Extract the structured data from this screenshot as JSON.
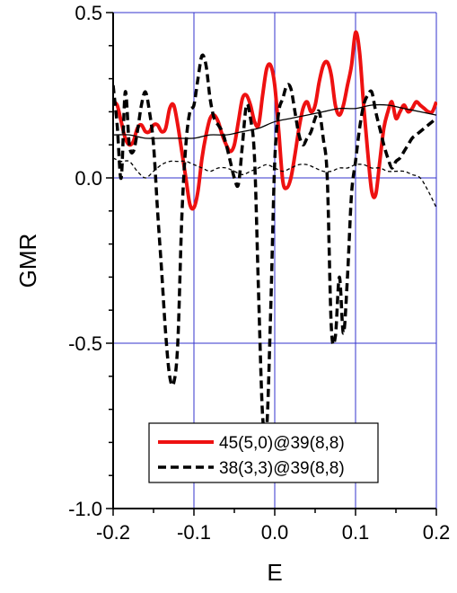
{
  "chart_data": {
    "type": "line",
    "xlabel": "E",
    "ylabel": "GMR",
    "xlim": [
      -0.2,
      0.2
    ],
    "ylim": [
      -1.0,
      0.5
    ],
    "xticks": [
      -0.2,
      -0.1,
      0.0,
      0.1,
      0.2
    ],
    "xtick_labels": [
      "-0.2",
      "-0.1",
      "0.0",
      "0.1",
      "0.2"
    ],
    "yticks": [
      -1.0,
      -0.5,
      0.0,
      0.5
    ],
    "ytick_labels": [
      "-1.0",
      "-0.5",
      "0.0",
      "0.5"
    ],
    "grid": true,
    "grid_color": "#3333cc",
    "legend_position": "bottom-center",
    "series": [
      {
        "name": "45(5,0)@39(8,8)",
        "color": "#ee1111",
        "style": "solid-thick",
        "x": [
          -0.2,
          -0.195,
          -0.19,
          -0.185,
          -0.18,
          -0.175,
          -0.17,
          -0.165,
          -0.16,
          -0.155,
          -0.15,
          -0.145,
          -0.14,
          -0.135,
          -0.13,
          -0.125,
          -0.12,
          -0.115,
          -0.11,
          -0.105,
          -0.1,
          -0.095,
          -0.09,
          -0.085,
          -0.08,
          -0.075,
          -0.07,
          -0.065,
          -0.06,
          -0.055,
          -0.05,
          -0.045,
          -0.04,
          -0.035,
          -0.03,
          -0.025,
          -0.02,
          -0.015,
          -0.01,
          -0.005,
          0.0,
          0.005,
          0.01,
          0.015,
          0.02,
          0.025,
          0.03,
          0.035,
          0.04,
          0.045,
          0.05,
          0.055,
          0.06,
          0.065,
          0.07,
          0.075,
          0.08,
          0.085,
          0.09,
          0.095,
          0.1,
          0.105,
          0.11,
          0.115,
          0.12,
          0.125,
          0.13,
          0.135,
          0.14,
          0.145,
          0.15,
          0.155,
          0.16,
          0.165,
          0.17,
          0.175,
          0.18,
          0.185,
          0.19,
          0.195,
          0.2
        ],
        "y": [
          0.23,
          0.22,
          0.17,
          0.12,
          0.1,
          0.11,
          0.15,
          0.16,
          0.14,
          0.14,
          0.16,
          0.16,
          0.14,
          0.15,
          0.21,
          0.22,
          0.16,
          0.08,
          0.0,
          -0.08,
          -0.09,
          -0.04,
          0.06,
          0.13,
          0.18,
          0.19,
          0.17,
          0.13,
          0.1,
          0.08,
          0.1,
          0.17,
          0.24,
          0.25,
          0.22,
          0.17,
          0.16,
          0.25,
          0.33,
          0.34,
          0.28,
          0.14,
          -0.01,
          -0.03,
          0.0,
          0.07,
          0.15,
          0.21,
          0.23,
          0.2,
          0.22,
          0.29,
          0.34,
          0.35,
          0.31,
          0.22,
          0.19,
          0.22,
          0.28,
          0.34,
          0.44,
          0.38,
          0.22,
          0.08,
          -0.04,
          -0.05,
          0.05,
          0.15,
          0.2,
          0.23,
          0.18,
          0.2,
          0.22,
          0.2,
          0.21,
          0.23,
          0.22,
          0.21,
          0.2,
          0.2,
          0.23
        ]
      },
      {
        "name": "38(3,3)@39(8,8)",
        "color": "#000000",
        "style": "dashed-thick",
        "x": [
          -0.2,
          -0.195,
          -0.19,
          -0.185,
          -0.18,
          -0.175,
          -0.17,
          -0.165,
          -0.16,
          -0.155,
          -0.15,
          -0.145,
          -0.14,
          -0.135,
          -0.13,
          -0.125,
          -0.12,
          -0.115,
          -0.11,
          -0.105,
          -0.1,
          -0.095,
          -0.09,
          -0.085,
          -0.08,
          -0.075,
          -0.07,
          -0.065,
          -0.06,
          -0.055,
          -0.05,
          -0.045,
          -0.04,
          -0.035,
          -0.03,
          -0.025,
          -0.02,
          -0.015,
          -0.01,
          -0.005,
          0.0,
          0.005,
          0.01,
          0.015,
          0.02,
          0.025,
          0.03,
          0.035,
          0.04,
          0.045,
          0.05,
          0.055,
          0.06,
          0.065,
          0.07,
          0.075,
          0.08,
          0.085,
          0.09,
          0.095,
          0.1,
          0.105,
          0.11,
          0.115,
          0.12,
          0.125,
          0.13,
          0.135,
          0.14,
          0.145,
          0.15,
          0.155,
          0.16,
          0.165,
          0.17,
          0.175,
          0.18,
          0.185,
          0.19,
          0.195,
          0.2
        ],
        "y": [
          0.28,
          0.16,
          0.0,
          0.26,
          0.1,
          0.08,
          0.14,
          0.22,
          0.26,
          0.2,
          0.1,
          -0.1,
          -0.28,
          -0.47,
          -0.6,
          -0.62,
          -0.5,
          -0.12,
          0.1,
          0.2,
          0.22,
          0.3,
          0.37,
          0.34,
          0.24,
          0.18,
          0.16,
          0.14,
          0.1,
          0.05,
          0.0,
          -0.02,
          0.1,
          0.22,
          0.18,
          0.06,
          -0.35,
          -0.72,
          -0.76,
          -0.4,
          0.05,
          0.2,
          0.24,
          0.28,
          0.27,
          0.2,
          0.13,
          0.1,
          0.12,
          0.14,
          0.18,
          0.2,
          0.12,
          0.0,
          -0.45,
          -0.48,
          -0.3,
          -0.47,
          -0.3,
          -0.05,
          0.05,
          0.15,
          0.22,
          0.25,
          0.26,
          0.2,
          0.15,
          0.1,
          0.06,
          0.03,
          0.05,
          0.06,
          0.08,
          0.1,
          0.12,
          0.13,
          0.14,
          0.15,
          0.16,
          0.17,
          0.18
        ]
      },
      {
        "color": "#000000",
        "style": "solid-thin",
        "x": [
          -0.2,
          -0.18,
          -0.16,
          -0.14,
          -0.12,
          -0.1,
          -0.08,
          -0.06,
          -0.04,
          -0.02,
          0.0,
          0.02,
          0.04,
          0.06,
          0.08,
          0.1,
          0.12,
          0.14,
          0.16,
          0.18,
          0.2
        ],
        "y": [
          0.13,
          0.13,
          0.12,
          0.12,
          0.12,
          0.12,
          0.13,
          0.13,
          0.14,
          0.15,
          0.17,
          0.18,
          0.19,
          0.2,
          0.21,
          0.21,
          0.22,
          0.22,
          0.21,
          0.2,
          0.19
        ]
      },
      {
        "color": "#000000",
        "style": "dotted-thin",
        "x": [
          -0.2,
          -0.19,
          -0.18,
          -0.17,
          -0.16,
          -0.15,
          -0.14,
          -0.13,
          -0.12,
          -0.11,
          -0.1,
          -0.09,
          -0.08,
          -0.07,
          -0.06,
          -0.05,
          -0.04,
          -0.03,
          -0.02,
          -0.01,
          0.0,
          0.01,
          0.02,
          0.03,
          0.04,
          0.05,
          0.06,
          0.07,
          0.08,
          0.09,
          0.1,
          0.11,
          0.12,
          0.13,
          0.14,
          0.15,
          0.16,
          0.17,
          0.18,
          0.19,
          0.2
        ],
        "y": [
          0.06,
          0.05,
          0.05,
          0.02,
          0.0,
          0.02,
          0.04,
          0.05,
          0.05,
          0.05,
          0.04,
          0.03,
          0.02,
          0.03,
          0.03,
          0.02,
          0.01,
          0.02,
          0.03,
          0.04,
          0.03,
          0.02,
          0.03,
          0.04,
          0.04,
          0.03,
          0.02,
          0.02,
          0.03,
          0.03,
          0.04,
          0.04,
          0.03,
          0.03,
          0.02,
          0.02,
          0.02,
          0.01,
          0.0,
          -0.04,
          -0.09
        ]
      }
    ]
  }
}
